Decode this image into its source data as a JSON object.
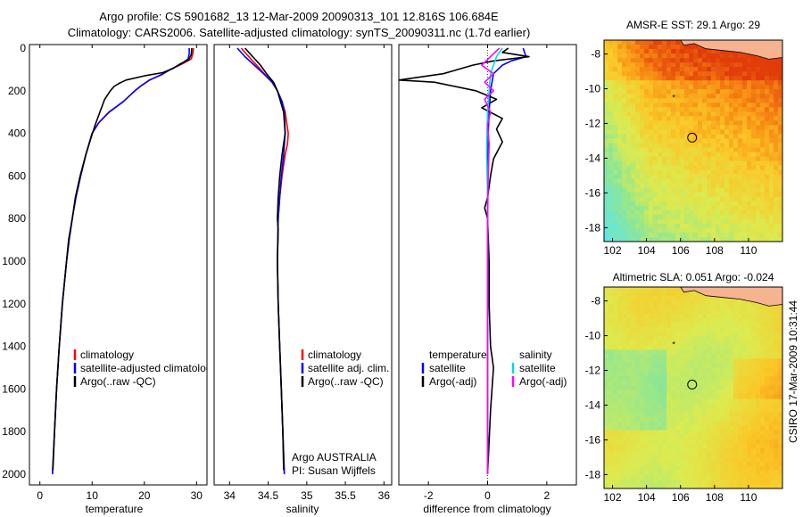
{
  "header": {
    "title_line1": "Argo profile: CS 5901682_13 12-Mar-2009 20090313_101 12.816S 106.684E",
    "title_line2": "Climatology: CARS2006. Satellite-adjusted climatology: synTS_20090311.nc (1.7d earlier)"
  },
  "footer": {
    "credit": "CSIRO 17-Mar-2009 10:31:44"
  },
  "colors": {
    "climatology": "#ff0000",
    "satellite": "#0000ff",
    "argo": "#000000",
    "salinity_satellite": "#00d8e8",
    "salinity_argo": "#ff00ff",
    "land": "#f5b38f"
  },
  "chart_data": [
    {
      "type": "line",
      "name": "temperature-profile",
      "xlabel": "temperature",
      "ylabel": "",
      "xlim": [
        -2,
        32
      ],
      "ylim": [
        2100,
        0
      ],
      "y_reversed": true,
      "xticks": [
        0,
        10,
        20,
        30
      ],
      "yticks": [
        0,
        200,
        400,
        600,
        800,
        1000,
        1200,
        1400,
        1600,
        1800,
        2000
      ],
      "legend": [
        "climatology",
        "satellite-adjusted climatology",
        "Argo(..raw -QC)"
      ],
      "series": [
        {
          "name": "climatology",
          "color": "#ff0000",
          "points": [
            [
              29.4,
              0
            ],
            [
              29.3,
              25
            ],
            [
              29.0,
              50
            ],
            [
              27.2,
              75
            ],
            [
              25.0,
              100
            ],
            [
              23.3,
              125
            ],
            [
              21.0,
              150
            ],
            [
              19.5,
              175
            ],
            [
              18.2,
              200
            ],
            [
              16.0,
              250
            ],
            [
              13.2,
              300
            ],
            [
              11.3,
              350
            ],
            [
              10.0,
              400
            ],
            [
              8.8,
              500
            ],
            [
              7.8,
              600
            ],
            [
              6.9,
              700
            ],
            [
              6.2,
              800
            ],
            [
              5.6,
              900
            ],
            [
              5.1,
              1000
            ],
            [
              4.3,
              1200
            ],
            [
              3.7,
              1400
            ],
            [
              3.2,
              1600
            ],
            [
              2.8,
              1800
            ],
            [
              2.4,
              2000
            ]
          ]
        },
        {
          "name": "satellite-adjusted climatology",
          "color": "#0000ff",
          "points": [
            [
              28.6,
              0
            ],
            [
              28.6,
              25
            ],
            [
              28.4,
              50
            ],
            [
              27.0,
              75
            ],
            [
              25.0,
              100
            ],
            [
              23.2,
              125
            ],
            [
              21.0,
              150
            ],
            [
              19.5,
              175
            ],
            [
              18.2,
              200
            ],
            [
              16.0,
              250
            ],
            [
              13.3,
              300
            ],
            [
              11.3,
              350
            ],
            [
              10.0,
              400
            ],
            [
              8.8,
              500
            ],
            [
              7.8,
              600
            ],
            [
              6.9,
              700
            ],
            [
              6.2,
              800
            ],
            [
              5.6,
              900
            ],
            [
              5.1,
              1000
            ],
            [
              4.3,
              1200
            ],
            [
              3.7,
              1400
            ],
            [
              3.2,
              1600
            ],
            [
              2.8,
              1800
            ],
            [
              2.4,
              2000
            ]
          ]
        },
        {
          "name": "Argo(..raw -QC)",
          "color": "#000000",
          "points": [
            [
              29.1,
              0
            ],
            [
              29.0,
              30
            ],
            [
              28.5,
              55
            ],
            [
              26.8,
              75
            ],
            [
              25.5,
              95
            ],
            [
              23.5,
              115
            ],
            [
              20.0,
              130
            ],
            [
              16.5,
              150
            ],
            [
              15.2,
              165
            ],
            [
              14.2,
              180
            ],
            [
              13.5,
              200
            ],
            [
              12.4,
              240
            ],
            [
              11.5,
              300
            ],
            [
              10.6,
              360
            ],
            [
              9.8,
              420
            ],
            [
              8.8,
              500
            ],
            [
              7.7,
              600
            ],
            [
              6.8,
              700
            ],
            [
              6.2,
              800
            ],
            [
              5.5,
              900
            ],
            [
              5.1,
              1000
            ],
            [
              4.3,
              1200
            ],
            [
              3.7,
              1400
            ],
            [
              3.2,
              1600
            ],
            [
              2.8,
              1800
            ],
            [
              2.5,
              1980
            ]
          ]
        }
      ]
    },
    {
      "type": "line",
      "name": "salinity-profile",
      "xlabel": "salinity",
      "ylabel": "",
      "xlim": [
        33.8,
        36.1
      ],
      "ylim": [
        2100,
        0
      ],
      "y_reversed": true,
      "xticks": [
        34,
        34.5,
        35,
        35.5,
        36
      ],
      "legend": [
        "climatology",
        "satellite adj. clim.",
        "Argo(..raw -QC)"
      ],
      "annotations": [
        "Argo AUSTRALIA",
        "PI: Susan Wijffels"
      ],
      "series": [
        {
          "name": "climatology",
          "color": "#ff0000",
          "points": [
            [
              34.15,
              0
            ],
            [
              34.25,
              40
            ],
            [
              34.35,
              80
            ],
            [
              34.45,
              120
            ],
            [
              34.55,
              160
            ],
            [
              34.62,
              200
            ],
            [
              34.68,
              250
            ],
            [
              34.72,
              300
            ],
            [
              34.74,
              350
            ],
            [
              34.76,
              400
            ],
            [
              34.75,
              450
            ],
            [
              34.72,
              500
            ],
            [
              34.68,
              600
            ],
            [
              34.65,
              700
            ],
            [
              34.63,
              800
            ],
            [
              34.62,
              1000
            ],
            [
              34.63,
              1200
            ],
            [
              34.65,
              1400
            ],
            [
              34.67,
              1600
            ],
            [
              34.69,
              1800
            ],
            [
              34.71,
              2000
            ]
          ]
        },
        {
          "name": "satellite adj. clim.",
          "color": "#0000ff",
          "points": [
            [
              34.1,
              0
            ],
            [
              34.2,
              40
            ],
            [
              34.32,
              80
            ],
            [
              34.44,
              120
            ],
            [
              34.55,
              160
            ],
            [
              34.62,
              200
            ],
            [
              34.68,
              250
            ],
            [
              34.71,
              300
            ],
            [
              34.72,
              400
            ],
            [
              34.7,
              500
            ],
            [
              34.67,
              600
            ],
            [
              34.65,
              700
            ],
            [
              34.63,
              800
            ],
            [
              34.62,
              1000
            ],
            [
              34.63,
              1200
            ],
            [
              34.65,
              1400
            ],
            [
              34.67,
              1600
            ],
            [
              34.69,
              1800
            ],
            [
              34.71,
              2000
            ]
          ]
        },
        {
          "name": "Argo(..raw -QC)",
          "color": "#000000",
          "points": [
            [
              34.2,
              0
            ],
            [
              34.3,
              40
            ],
            [
              34.4,
              80
            ],
            [
              34.48,
              120
            ],
            [
              34.57,
              160
            ],
            [
              34.62,
              200
            ],
            [
              34.66,
              250
            ],
            [
              34.7,
              300
            ],
            [
              34.72,
              400
            ],
            [
              34.68,
              500
            ],
            [
              34.65,
              600
            ],
            [
              34.63,
              700
            ],
            [
              34.62,
              800
            ],
            [
              34.63,
              850
            ],
            [
              34.62,
              1000
            ],
            [
              34.63,
              1200
            ],
            [
              34.65,
              1400
            ],
            [
              34.67,
              1600
            ],
            [
              34.69,
              1800
            ],
            [
              34.7,
              1980
            ]
          ]
        }
      ]
    },
    {
      "type": "line",
      "name": "difference-profile",
      "xlabel": "difference from climatology",
      "ylabel": "",
      "xlim": [
        -3,
        3
      ],
      "ylim": [
        2100,
        0
      ],
      "y_reversed": true,
      "xticks": [
        -2,
        0,
        2
      ],
      "legend_left_title": "temperature",
      "legend_right_title": "salinity",
      "legend": [
        "satellite",
        "Argo(-adj)",
        "satellite",
        "Argo(-adj)"
      ],
      "series": [
        {
          "name": "temperature satellite",
          "color": "#0000ff",
          "points": [
            [
              1.2,
              0
            ],
            [
              1.3,
              40
            ],
            [
              0.8,
              60
            ],
            [
              0.5,
              80
            ],
            [
              0.2,
              120
            ],
            [
              0.1,
              200
            ],
            [
              0.05,
              300
            ],
            [
              0.02,
              400
            ],
            [
              0.0,
              600
            ],
            [
              0.0,
              1000
            ],
            [
              0.0,
              1400
            ],
            [
              0.0,
              2000
            ]
          ]
        },
        {
          "name": "temperature Argo(-adj)",
          "color": "#000000",
          "points": [
            [
              0.7,
              0
            ],
            [
              0.5,
              20
            ],
            [
              1.4,
              40
            ],
            [
              0.2,
              60
            ],
            [
              -0.5,
              80
            ],
            [
              -1.5,
              120
            ],
            [
              -3.0,
              150
            ],
            [
              -1.8,
              160
            ],
            [
              -0.4,
              200
            ],
            [
              0.3,
              240
            ],
            [
              -0.2,
              280
            ],
            [
              0.5,
              330
            ],
            [
              0.3,
              380
            ],
            [
              0.5,
              440
            ],
            [
              0.2,
              520
            ],
            [
              0.1,
              600
            ],
            [
              0.0,
              700
            ],
            [
              -0.1,
              750
            ],
            [
              0.0,
              800
            ],
            [
              0.05,
              1000
            ],
            [
              0.05,
              1200
            ],
            [
              0.1,
              1400
            ],
            [
              0.2,
              1500
            ],
            [
              0.1,
              1700
            ],
            [
              0.0,
              2000
            ]
          ]
        },
        {
          "name": "salinity satellite",
          "color": "#00d8e8",
          "points": [
            [
              0.5,
              0
            ],
            [
              0.3,
              40
            ],
            [
              0.2,
              80
            ],
            [
              0.1,
              120
            ],
            [
              0.05,
              200
            ],
            [
              0.0,
              300
            ],
            [
              -0.02,
              400
            ],
            [
              -0.03,
              500
            ],
            [
              0.0,
              700
            ],
            [
              0.0,
              1000
            ],
            [
              0.0,
              1400
            ],
            [
              0.0,
              2000
            ]
          ]
        },
        {
          "name": "salinity Argo(-adj)",
          "color": "#ff00ff",
          "points": [
            [
              0.4,
              0
            ],
            [
              0.1,
              40
            ],
            [
              -0.2,
              80
            ],
            [
              0.2,
              120
            ],
            [
              -0.1,
              160
            ],
            [
              0.2,
              200
            ],
            [
              -0.1,
              240
            ],
            [
              0.1,
              300
            ],
            [
              0.0,
              360
            ],
            [
              0.05,
              450
            ],
            [
              0.02,
              600
            ],
            [
              0.0,
              800
            ],
            [
              0.0,
              1200
            ],
            [
              0.0,
              1600
            ],
            [
              0.0,
              2000
            ]
          ]
        }
      ]
    },
    {
      "type": "heatmap",
      "name": "sst-map",
      "title": "AMSR-E SST: 29.1 Argo: 29",
      "xticks": [
        102,
        104,
        106,
        108,
        110
      ],
      "yticks": [
        -8,
        -10,
        -12,
        -14,
        -16,
        -18
      ],
      "xlim": [
        101.5,
        112
      ],
      "ylim": [
        -18.8,
        -7.2
      ],
      "argo_position": [
        106.684,
        -12.816
      ],
      "previous_position": [
        105.6,
        -10.5
      ]
    },
    {
      "type": "heatmap",
      "name": "sla-map",
      "title": "Altimetric SLA: 0.051 Argo: -0.024",
      "xticks": [
        102,
        104,
        106,
        108,
        110
      ],
      "yticks": [
        -8,
        -10,
        -12,
        -14,
        -16,
        -18
      ],
      "xlim": [
        101.5,
        112
      ],
      "ylim": [
        -18.8,
        -7.2
      ],
      "argo_position": [
        106.684,
        -12.816
      ],
      "previous_position": [
        105.6,
        -10.5
      ]
    }
  ],
  "legends": {
    "temperature": [
      "climatology",
      "satellite-adjusted climatology",
      "Argo(..raw -QC)"
    ],
    "salinity": [
      "climatology",
      "satellite adj. clim.",
      "Argo(..raw -QC)"
    ],
    "difference_left_title": "temperature",
    "difference_right_title": "salinity",
    "difference_left": [
      "satellite",
      "Argo(-adj)"
    ],
    "difference_right": [
      "satellite",
      "Argo(-adj)"
    ]
  },
  "annotation": {
    "line1": "Argo AUSTRALIA",
    "line2": "PI: Susan Wijffels"
  }
}
